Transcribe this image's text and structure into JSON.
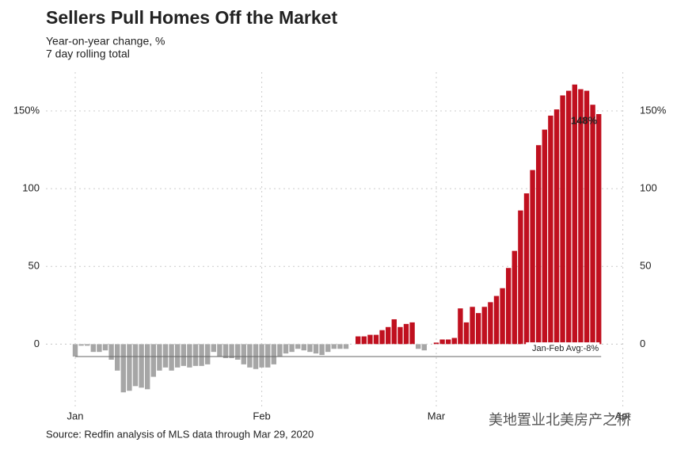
{
  "chart_data": {
    "type": "bar",
    "title": "Sellers Pull Homes Off the Market",
    "subtitle": [
      "Year-on-year change, %",
      "7 day rolling total"
    ],
    "source": "Source: Redfin analysis of MLS data through Mar 29, 2020",
    "watermark": "美地置业北美房产之桥",
    "categories": [
      "Jan",
      null,
      null,
      null,
      null,
      null,
      null,
      null,
      null,
      null,
      null,
      null,
      null,
      null,
      null,
      null,
      null,
      null,
      null,
      null,
      null,
      null,
      null,
      null,
      null,
      null,
      null,
      null,
      null,
      null,
      null,
      "Feb",
      null,
      null,
      null,
      null,
      null,
      null,
      null,
      null,
      null,
      null,
      null,
      null,
      null,
      null,
      null,
      null,
      null,
      null,
      null,
      null,
      null,
      null,
      null,
      null,
      null,
      null,
      null,
      null,
      "Mar",
      null,
      null,
      null,
      null,
      null,
      null,
      null,
      null,
      null,
      null,
      null,
      null,
      null,
      null,
      null,
      null,
      null,
      null,
      null,
      null,
      null,
      null,
      null,
      null,
      null,
      null,
      null,
      null,
      null,
      null,
      "Apr"
    ],
    "values": [
      -8,
      -1,
      -1,
      -5,
      -5,
      -4,
      -10,
      -17,
      -31,
      -30,
      -27,
      -28,
      -29,
      -21,
      -17,
      -15,
      -17,
      -15,
      -14,
      -15,
      -14,
      -14,
      -13,
      -5,
      -8,
      -9,
      -9,
      -10,
      -13,
      -15,
      -16,
      -15,
      -15,
      -13,
      -8,
      -6,
      -5,
      -3,
      -4,
      -5,
      -6,
      -7,
      -5,
      -3,
      -3,
      -3,
      null,
      5,
      5,
      6,
      6,
      9,
      11,
      16,
      11,
      13,
      14,
      -3,
      -4,
      null,
      1,
      3,
      3,
      4,
      23,
      14,
      24,
      20,
      24,
      27,
      31,
      36,
      49,
      60,
      86,
      97,
      112,
      128,
      138,
      147,
      151,
      160,
      163,
      167,
      164,
      163,
      154,
      148,
      null,
      null,
      null,
      null
    ],
    "value_labels": [
      null,
      null,
      null,
      null,
      null,
      null,
      null,
      null,
      null,
      null,
      null,
      null,
      null,
      null,
      null,
      null,
      null,
      null,
      null,
      null,
      null,
      null,
      null,
      null,
      null,
      null,
      null,
      null,
      null,
      null,
      null,
      null,
      null,
      null,
      null,
      null,
      null,
      null,
      null,
      null,
      null,
      null,
      null,
      null,
      null,
      null,
      null,
      null,
      null,
      null,
      null,
      null,
      null,
      null,
      null,
      null,
      null,
      null,
      null,
      null,
      null,
      null,
      null,
      null,
      null,
      null,
      null,
      null,
      null,
      null,
      null,
      null,
      null,
      null,
      null,
      null,
      null,
      null,
      null,
      null,
      null,
      null,
      null,
      null,
      null,
      null,
      null,
      "148%",
      null,
      null,
      null,
      null
    ],
    "color": "#c0101f",
    "negative_color": "#a6a6a6",
    "reference_line": {
      "value": -8,
      "label": "Jan-Feb Avg:-8%"
    },
    "ylim": [
      -36,
      175
    ],
    "yticks": [
      0,
      50,
      100,
      {
        "value": 150,
        "label": "150%"
      }
    ],
    "grid": true
  }
}
